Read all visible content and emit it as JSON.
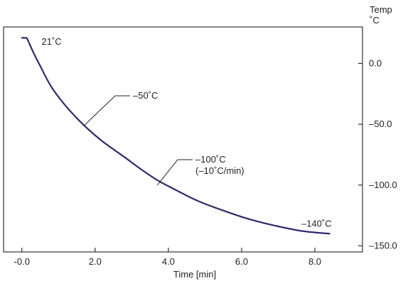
{
  "chart_data": {
    "type": "line",
    "title": "",
    "xlabel": "Time [min]",
    "ylabel": [
      "Temp",
      "˚C"
    ],
    "xlim": [
      -0.5,
      9.3
    ],
    "ylim": [
      -155,
      30
    ],
    "x_ticks": [
      0,
      2,
      4,
      6,
      8
    ],
    "x_tick_labels": [
      "-0.0",
      "2.0",
      "4.0",
      "6.0",
      "8.0"
    ],
    "y_ticks": [
      0,
      -50,
      -100,
      -150
    ],
    "y_tick_labels": [
      "0.0",
      "–50.0",
      "–100.0",
      "–150.0"
    ],
    "y_axis_side": "right",
    "grid": false,
    "legend": "none",
    "colors": {
      "line": "#2e2a6b",
      "axis": "#333333"
    },
    "series": [
      {
        "x": [
          0.0,
          0.1,
          0.15,
          0.3,
          0.5,
          0.8,
          1.2,
          1.7,
          2.2,
          2.8,
          3.3,
          3.7,
          4.2,
          4.8,
          5.5,
          6.2,
          7.0,
          7.7,
          8.4
        ],
        "y": [
          21,
          21,
          20,
          10,
          -2,
          -19,
          -35,
          -51,
          -64,
          -77,
          -88,
          -96,
          -104,
          -113,
          -121,
          -128,
          -134,
          -138,
          -140
        ]
      }
    ],
    "annotations": [
      {
        "lines": [
          "21˚C"
        ],
        "x": 0.15,
        "y": 20
      },
      {
        "lines": [
          "–50˚C"
        ],
        "x": 1.7,
        "y": -51,
        "leader": true
      },
      {
        "lines": [
          "–100˚C",
          "(–10˚C/min)"
        ],
        "x": 3.7,
        "y": -100,
        "leader": true
      },
      {
        "lines": [
          "–140˚C"
        ],
        "x": 8.4,
        "y": -140
      }
    ]
  }
}
